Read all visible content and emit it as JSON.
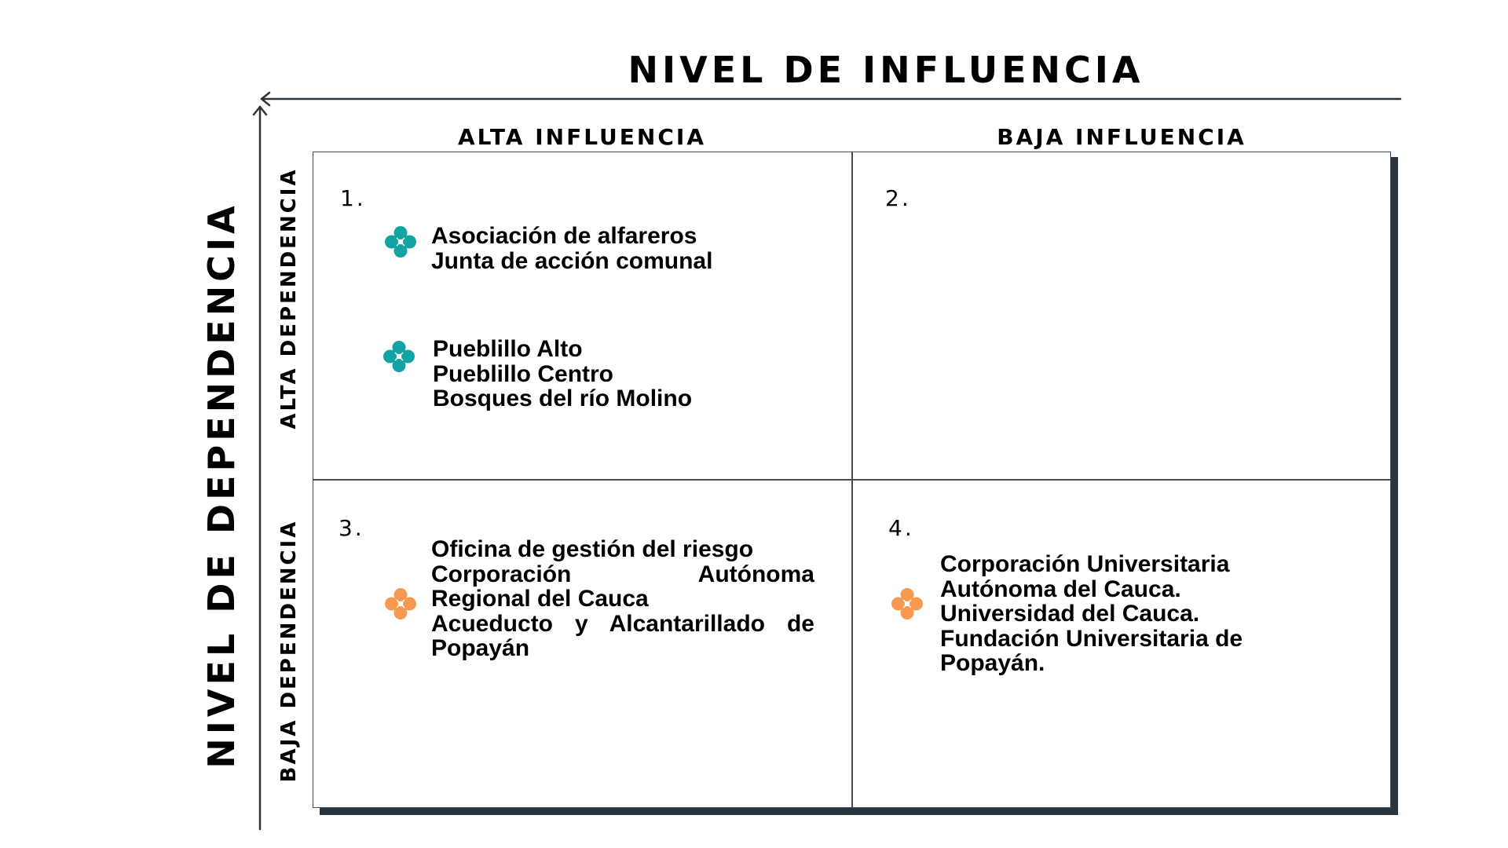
{
  "titles": {
    "horizontal": "NIVEL DE INFLUENCIA",
    "vertical": "NIVEL DE DEPENDENCIA"
  },
  "columns": {
    "left": "ALTA INFLUENCIA",
    "right": "BAJA INFLUENCIA"
  },
  "rows": {
    "top": "ALTA DEPENDENCIA",
    "bottom": "BAJA DEPENDENCIA"
  },
  "quadrants": {
    "q1": {
      "number": "1.",
      "groups": [
        {
          "icon": "teal-flower-icon",
          "lines": [
            "Asociación de alfareros",
            "Junta de acción comunal"
          ]
        },
        {
          "icon": "teal-flower-icon",
          "lines": [
            "Pueblillo Alto",
            "Pueblillo Centro",
            "Bosques del río Molino"
          ]
        }
      ]
    },
    "q2": {
      "number": "2."
    },
    "q3": {
      "number": "3.",
      "groups": [
        {
          "icon": "orange-flower-icon",
          "lines": [
            "Oficina de gestión del riesgo",
            "Corporación Autónoma",
            "Regional del Cauca",
            "Acueducto y Alcantarillado de",
            "Popayán"
          ]
        }
      ]
    },
    "q4": {
      "number": "4.",
      "groups": [
        {
          "icon": "orange-flower-icon",
          "lines": [
            "Corporación Universitaria",
            "Autónoma del Cauca.",
            "Universidad del Cauca.",
            "Fundación Universitaria de",
            "Popayán."
          ]
        }
      ]
    }
  },
  "colors": {
    "teal": "#14a3a3",
    "orange": "#f79a4f",
    "axis": "#2b333c"
  }
}
